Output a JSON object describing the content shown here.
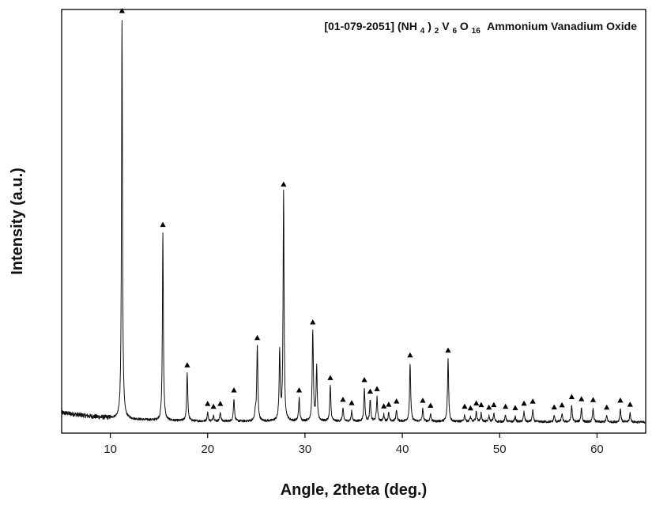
{
  "chart_data": {
    "type": "line",
    "xlabel": "Angle, 2theta (deg.)",
    "ylabel": "Intensity (a.u.)",
    "xlim": [
      5,
      65
    ],
    "ylim": [
      0,
      100
    ],
    "x_ticks": [
      10,
      20,
      30,
      40,
      50,
      60
    ],
    "grid": false,
    "legend": {
      "placement": "top-right",
      "id": "[01-079-2051]",
      "formula_parts": [
        "(NH",
        "4",
        ")",
        "2",
        "V",
        "6",
        "O",
        "16"
      ],
      "name": "Ammonium Vanadium Oxide",
      "marker": "triangle"
    },
    "colors": {
      "line": "#111111",
      "marker": "#000000",
      "axis": "#000000"
    },
    "baseline": [
      [
        5.0,
        4.0
      ],
      [
        8.0,
        3.1
      ],
      [
        10.5,
        2.6
      ],
      [
        15,
        2.1
      ],
      [
        20,
        1.9
      ],
      [
        30,
        1.9
      ],
      [
        40,
        1.9
      ],
      [
        50,
        1.8
      ],
      [
        65,
        1.7
      ]
    ],
    "peaks": [
      {
        "x": 11.2,
        "y": 97.0
      },
      {
        "x": 15.4,
        "y": 45.5
      },
      {
        "x": 17.9,
        "y": 11.5
      },
      {
        "x": 20.0,
        "y": 2.2
      },
      {
        "x": 20.6,
        "y": 1.5
      },
      {
        "x": 21.3,
        "y": 2.2
      },
      {
        "x": 22.7,
        "y": 5.5
      },
      {
        "x": 24.9,
        "y": 2.0
      },
      {
        "x": 25.1,
        "y": 18.2
      },
      {
        "x": 27.4,
        "y": 16.5
      },
      {
        "x": 27.8,
        "y": 55.5
      },
      {
        "x": 29.4,
        "y": 5.5
      },
      {
        "x": 30.8,
        "y": 22.0
      },
      {
        "x": 31.2,
        "y": 13.0
      },
      {
        "x": 32.6,
        "y": 8.5
      },
      {
        "x": 33.9,
        "y": 3.2
      },
      {
        "x": 34.8,
        "y": 2.4
      },
      {
        "x": 36.1,
        "y": 8.0
      },
      {
        "x": 36.7,
        "y": 5.2
      },
      {
        "x": 37.4,
        "y": 5.8
      },
      {
        "x": 38.1,
        "y": 1.6
      },
      {
        "x": 38.6,
        "y": 2.0
      },
      {
        "x": 39.4,
        "y": 2.8
      },
      {
        "x": 40.8,
        "y": 14.0
      },
      {
        "x": 42.1,
        "y": 3.0
      },
      {
        "x": 42.9,
        "y": 1.8
      },
      {
        "x": 44.7,
        "y": 15.2
      },
      {
        "x": 46.4,
        "y": 1.6
      },
      {
        "x": 47.0,
        "y": 1.2
      },
      {
        "x": 47.6,
        "y": 2.4
      },
      {
        "x": 48.1,
        "y": 2.0
      },
      {
        "x": 48.9,
        "y": 1.4
      },
      {
        "x": 49.4,
        "y": 2.0
      },
      {
        "x": 50.6,
        "y": 1.6
      },
      {
        "x": 51.6,
        "y": 1.3
      },
      {
        "x": 52.5,
        "y": 2.4
      },
      {
        "x": 53.4,
        "y": 2.9
      },
      {
        "x": 55.6,
        "y": 1.5
      },
      {
        "x": 56.4,
        "y": 2.0
      },
      {
        "x": 57.4,
        "y": 4.0
      },
      {
        "x": 58.4,
        "y": 3.5
      },
      {
        "x": 59.6,
        "y": 3.3
      },
      {
        "x": 61.0,
        "y": 1.5
      },
      {
        "x": 62.4,
        "y": 3.2
      },
      {
        "x": 63.4,
        "y": 2.2
      }
    ]
  }
}
